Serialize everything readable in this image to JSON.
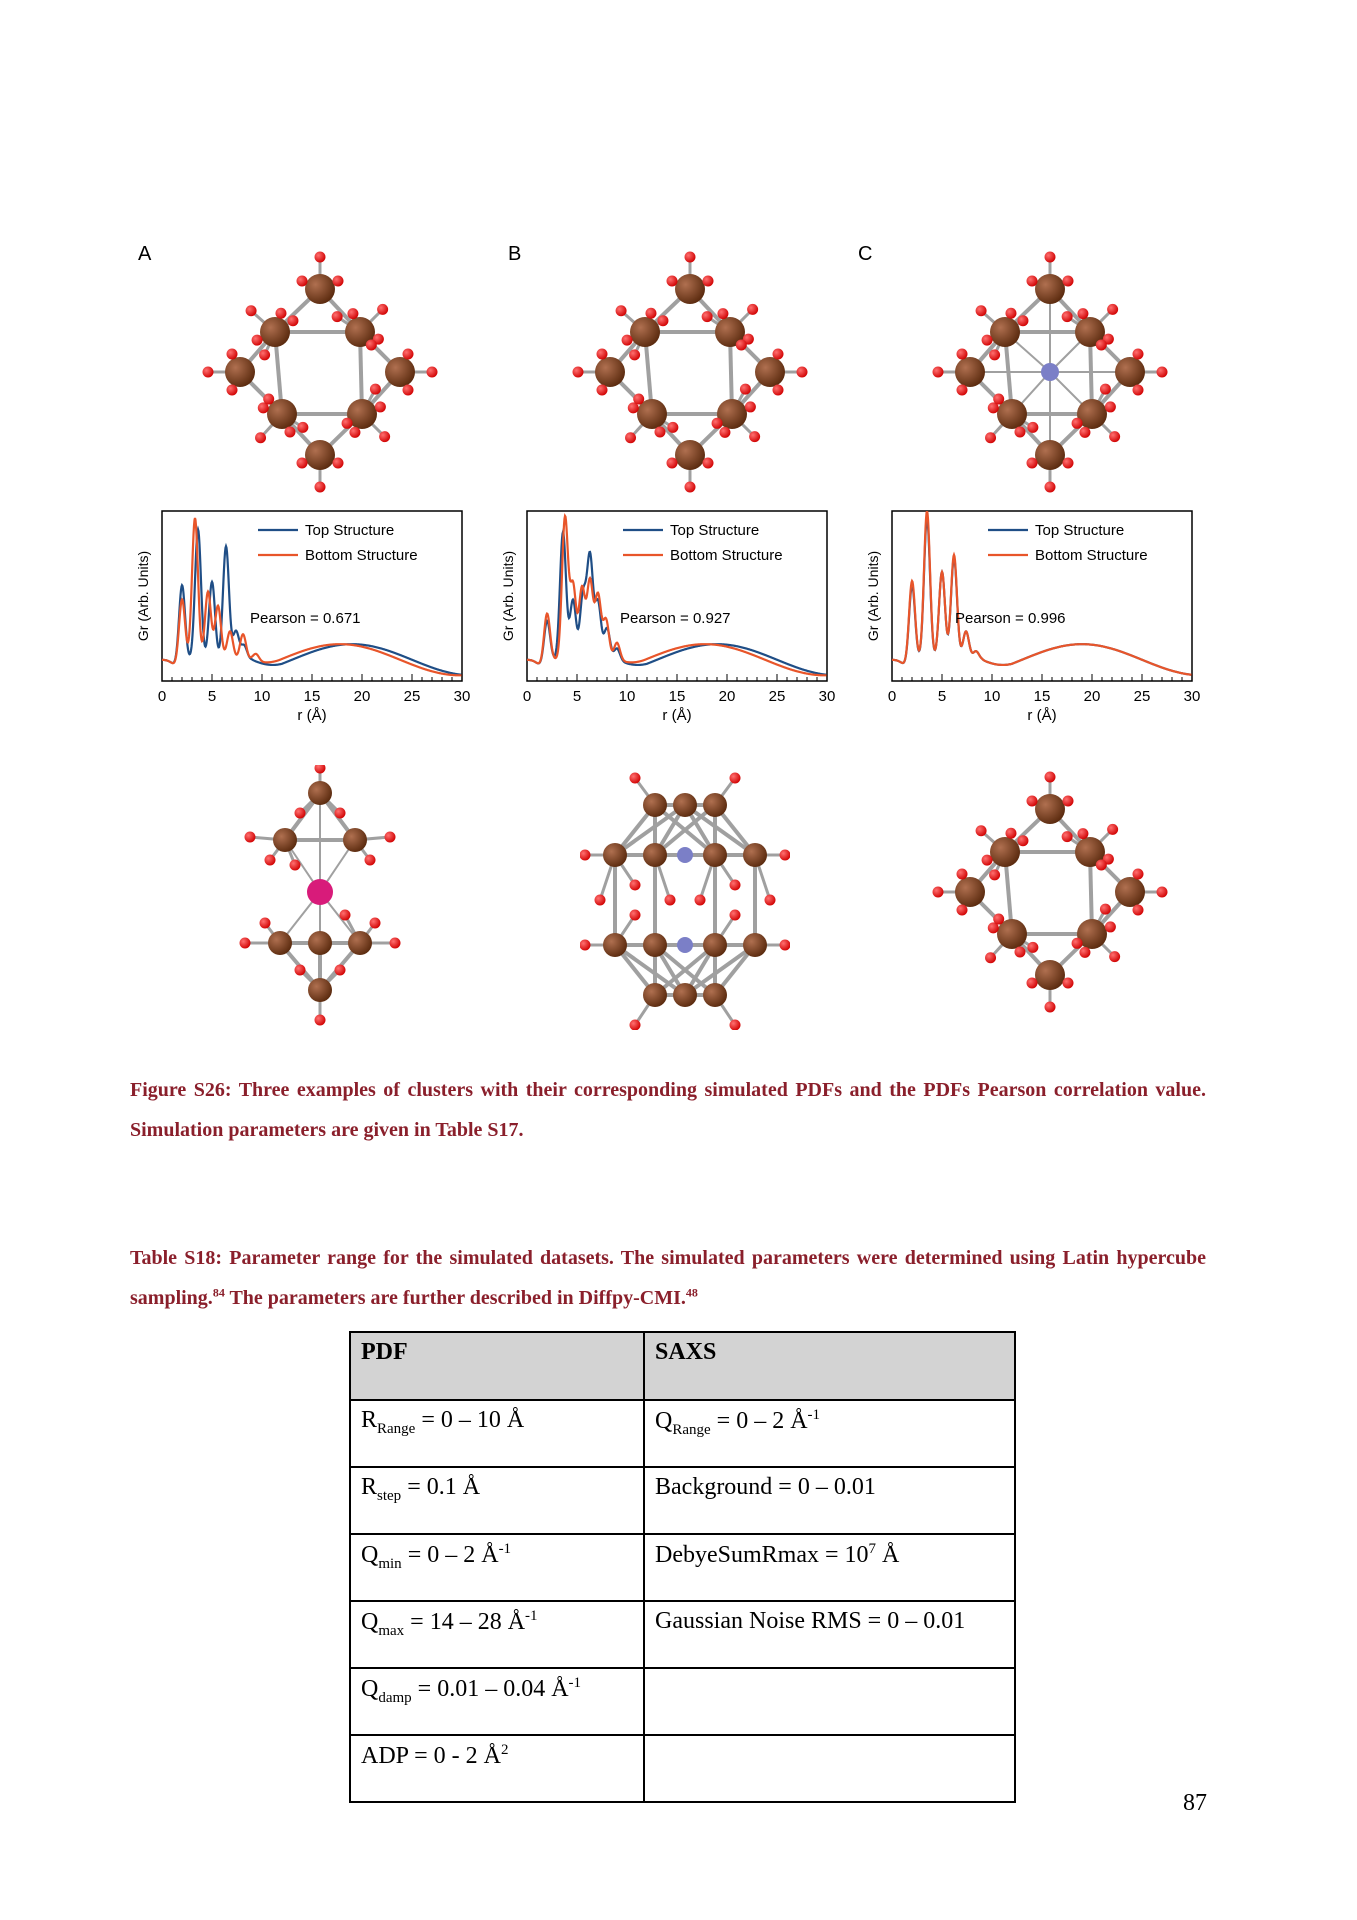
{
  "panels": [
    {
      "letter": "A"
    },
    {
      "letter": "B"
    },
    {
      "letter": "C"
    }
  ],
  "colors": {
    "top_structure": "#1f4e86",
    "bottom_structure": "#e8552a",
    "iron": "#5a2a0e",
    "oxygen": "#d00000",
    "bond": "#a0a0a0",
    "center_blue": "#7b7fc7",
    "center_pink": "#d81b7a",
    "caption": "#8a1f2b"
  },
  "chart_data": [
    {
      "type": "line",
      "xlabel": "r (Å)",
      "ylabel": "Gr (Arb. Units)",
      "xlim": [
        0,
        30
      ],
      "xticks": [
        0,
        5,
        10,
        15,
        20,
        25,
        30
      ],
      "legend": [
        "Top Structure",
        "Bottom Structure"
      ],
      "legend_position": "top-right",
      "annotation": "Pearson = 0.671",
      "series": [
        {
          "name": "Top Structure",
          "peaks": [
            [
              2.0,
              0.55
            ],
            [
              3.6,
              0.92
            ],
            [
              5.0,
              0.55
            ],
            [
              6.4,
              0.8
            ],
            [
              7.4,
              0.2
            ],
            [
              8.2,
              0.1
            ]
          ]
        },
        {
          "name": "Bottom Structure",
          "peaks": [
            [
              2.0,
              0.45
            ],
            [
              3.3,
              1.0
            ],
            [
              4.6,
              0.48
            ],
            [
              5.6,
              0.38
            ],
            [
              6.8,
              0.2
            ],
            [
              8.1,
              0.18
            ],
            [
              9.4,
              0.05
            ]
          ]
        }
      ]
    },
    {
      "type": "line",
      "xlabel": "r (Å)",
      "ylabel": "Gr (Arb. Units)",
      "xlim": [
        0,
        30
      ],
      "xticks": [
        0,
        5,
        10,
        15,
        20,
        25,
        30
      ],
      "legend": [
        "Top Structure",
        "Bottom Structure"
      ],
      "legend_position": "top-right",
      "annotation": "Pearson = 0.927",
      "series": [
        {
          "name": "Top Structure",
          "peaks": [
            [
              2.0,
              0.3
            ],
            [
              3.6,
              0.9
            ],
            [
              4.6,
              0.42
            ],
            [
              5.6,
              0.45
            ],
            [
              6.3,
              0.72
            ],
            [
              7.1,
              0.4
            ],
            [
              8.0,
              0.22
            ],
            [
              9.0,
              0.08
            ]
          ]
        },
        {
          "name": "Bottom Structure",
          "peaks": [
            [
              2.0,
              0.35
            ],
            [
              3.8,
              1.0
            ],
            [
              4.6,
              0.52
            ],
            [
              5.5,
              0.5
            ],
            [
              6.3,
              0.55
            ],
            [
              7.1,
              0.45
            ],
            [
              7.9,
              0.28
            ],
            [
              9.0,
              0.12
            ]
          ]
        }
      ]
    },
    {
      "type": "line",
      "xlabel": "r (Å)",
      "ylabel": "Gr (Arb. Units)",
      "xlim": [
        0,
        30
      ],
      "xticks": [
        0,
        5,
        10,
        15,
        20,
        25,
        30
      ],
      "legend": [
        "Top Structure",
        "Bottom Structure"
      ],
      "legend_position": "top-right",
      "annotation": "Pearson = 0.996",
      "series": [
        {
          "name": "Top Structure",
          "peaks": [
            [
              2.0,
              0.55
            ],
            [
              3.5,
              1.0
            ],
            [
              5.0,
              0.62
            ],
            [
              6.2,
              0.72
            ],
            [
              7.4,
              0.2
            ],
            [
              8.4,
              0.06
            ]
          ]
        },
        {
          "name": "Bottom Structure",
          "peaks": [
            [
              2.0,
              0.58
            ],
            [
              3.5,
              1.05
            ],
            [
              5.0,
              0.62
            ],
            [
              6.2,
              0.74
            ],
            [
              7.4,
              0.2
            ],
            [
              8.4,
              0.06
            ]
          ]
        }
      ]
    }
  ],
  "figure_caption": "Figure S26: Three examples of clusters with their corresponding simulated PDFs and the PDFs Pearson correlation value. Simulation parameters are given in Table S17.",
  "table_caption": {
    "part1": "Table S18: Parameter range for the simulated datasets. The simulated parameters were determined using Latin hypercube sampling.",
    "ref1": "84",
    "part2": " The parameters are further described in Diffpy-CMI.",
    "ref2": "48"
  },
  "table": {
    "headers": [
      "PDF",
      "SAXS"
    ],
    "rows": [
      [
        {
          "main": "R",
          "sub": "Range",
          "rest": " = 0 – 10 Å",
          "sup": ""
        },
        {
          "main": "Q",
          "sub": "Range",
          "rest": " = 0 – 2 Å",
          "sup": "-1"
        }
      ],
      [
        {
          "main": "R",
          "sub": "step",
          "rest": " = 0.1 Å",
          "sup": ""
        },
        {
          "main": "Background = 0 – 0.01",
          "sub": "",
          "rest": "",
          "sup": ""
        }
      ],
      [
        {
          "main": "Q",
          "sub": "min",
          "rest": " = 0 – 2 Å",
          "sup": "-1"
        },
        {
          "main": "DebyeSumRmax = 10",
          "sub": "",
          "rest": "",
          "sup": "7",
          "after": " Å"
        }
      ],
      [
        {
          "main": "Q",
          "sub": "max",
          "rest": " = 14 – 28 Å",
          "sup": "-1"
        },
        {
          "main": "Gaussian Noise RMS = 0 – 0.01",
          "sub": "",
          "rest": "",
          "sup": ""
        }
      ],
      [
        {
          "main": "Q",
          "sub": "damp",
          "rest": " = 0.01 – 0.04 Å",
          "sup": "-1"
        },
        {
          "main": "",
          "sub": "",
          "rest": "",
          "sup": ""
        }
      ],
      [
        {
          "main": "ADP = 0 - 2 Å",
          "sub": "",
          "rest": "",
          "sup": "2"
        },
        {
          "main": "",
          "sub": "",
          "rest": "",
          "sup": ""
        }
      ]
    ]
  },
  "page_number": "87"
}
